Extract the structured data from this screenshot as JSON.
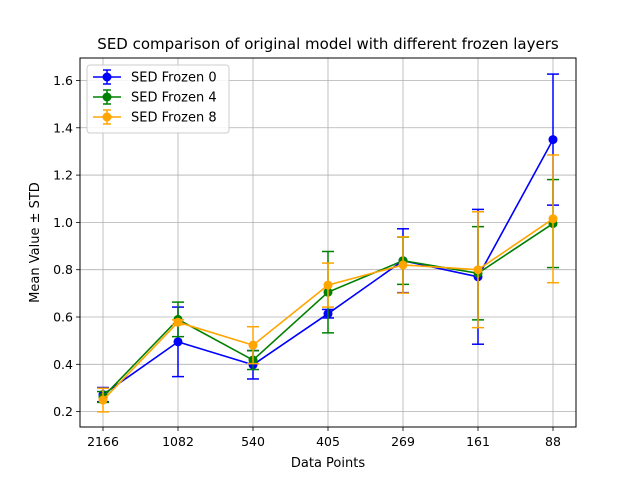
{
  "chart_data": {
    "type": "line",
    "title": "SED comparison of original model with different frozen layers",
    "xlabel": "Data Points",
    "ylabel": "Mean Value ± STD",
    "categories": [
      "2166",
      "1082",
      "540",
      "405",
      "269",
      "161",
      "88"
    ],
    "ylim": [
      0.135,
      1.695
    ],
    "yticks": [
      0.2,
      0.4,
      0.6,
      0.8,
      1.0,
      1.2,
      1.4,
      1.6
    ],
    "ytick_labels": [
      "0.2",
      "0.4",
      "0.6",
      "0.8",
      "1.0",
      "1.2",
      "1.4",
      "1.6"
    ],
    "grid": true,
    "legend_position": "top-left",
    "series": [
      {
        "name": "SED Frozen 0",
        "color": "#0000ff",
        "values": [
          0.272,
          0.495,
          0.398,
          0.614,
          0.838,
          0.77,
          1.35
        ],
        "err": [
          0.03,
          0.147,
          0.06,
          0.018,
          0.135,
          0.285,
          0.277
        ]
      },
      {
        "name": "SED Frozen 4",
        "color": "#008000",
        "values": [
          0.262,
          0.59,
          0.418,
          0.705,
          0.838,
          0.785,
          0.995
        ],
        "err": [
          0.023,
          0.073,
          0.04,
          0.172,
          0.1,
          0.197,
          0.186
        ]
      },
      {
        "name": "SED Frozen 8",
        "color": "#ffa500",
        "values": [
          0.249,
          0.578,
          0.481,
          0.735,
          0.82,
          0.8,
          1.015
        ],
        "err": [
          0.05,
          0.01,
          0.078,
          0.093,
          0.119,
          0.245,
          0.27
        ]
      }
    ]
  }
}
